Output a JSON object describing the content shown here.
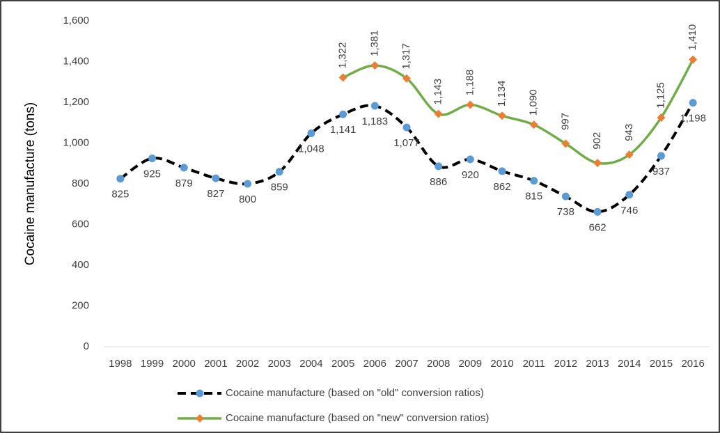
{
  "chart_data": {
    "type": "line",
    "y_label": "Cocaine manufacture (tons)",
    "categories": [
      "1998",
      "1999",
      "2000",
      "2001",
      "2002",
      "2003",
      "2004",
      "2005",
      "2006",
      "2007",
      "2008",
      "2009",
      "2010",
      "2011",
      "2012",
      "2013",
      "2014",
      "2015",
      "2016"
    ],
    "ylim": [
      0,
      1600
    ],
    "yticks": [
      0,
      200,
      400,
      600,
      800,
      {
        "value": 1000,
        "label": "1,000"
      },
      {
        "value": 1200,
        "label": "1,200"
      },
      {
        "value": 1400,
        "label": "1,400"
      },
      {
        "value": 1600,
        "label": "1,600"
      }
    ],
    "grid": false,
    "legend": "bottom",
    "series": [
      {
        "name": "Cocaine manufacture (based on \"old\" conversion ratios)",
        "color": "#000000",
        "marker_color": "#5b9bd5",
        "dashed": true,
        "values": [
          825,
          925,
          879,
          827,
          800,
          859,
          1048,
          1141,
          1183,
          1077,
          886,
          920,
          862,
          815,
          738,
          662,
          746,
          937,
          1198
        ],
        "value_labels": [
          "825",
          "925",
          "879",
          "827",
          "800",
          "859",
          "1,048",
          "1,141",
          "1,183",
          "1,077",
          "886",
          "920",
          "862",
          "815",
          "738",
          "662",
          "746",
          "937",
          "1,198"
        ]
      },
      {
        "name": "Cocaine manufacture (based on \"new\" conversion ratios)",
        "color": "#70ad47",
        "marker_color": "#ed7d31",
        "dashed": false,
        "values": [
          null,
          null,
          null,
          null,
          null,
          null,
          null,
          1322,
          1381,
          1317,
          1143,
          1188,
          1134,
          1090,
          997,
          902,
          943,
          1125,
          1410
        ],
        "value_labels": [
          null,
          null,
          null,
          null,
          null,
          null,
          null,
          "1,322",
          "1,381",
          "1,317",
          "1,143",
          "1,188",
          "1,134",
          "1,090",
          "997",
          "902",
          "943",
          "1,125",
          "1,410"
        ]
      }
    ]
  }
}
